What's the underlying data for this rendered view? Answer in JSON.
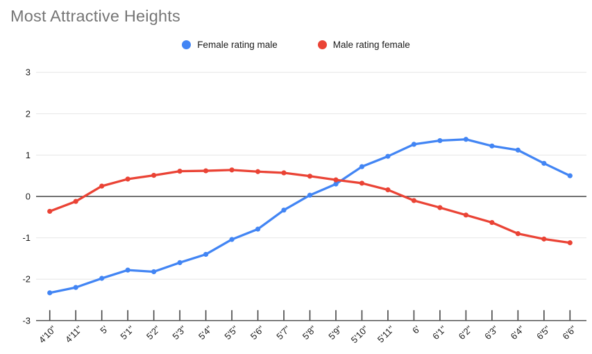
{
  "title": "Most Attractive Heights",
  "colors": {
    "title_text": "#757575",
    "series_blue": "#4285f4",
    "series_red": "#ea4335",
    "gridline": "#e6e6e6",
    "axis_line": "#424242",
    "axis_text": "#1a1a1a",
    "background": "#ffffff"
  },
  "legend": {
    "items": [
      {
        "label": "Female rating male",
        "color": "#4285f4"
      },
      {
        "label": "Male rating female",
        "color": "#ea4335"
      }
    ]
  },
  "chart_data": {
    "type": "line",
    "title": "Most Attractive Heights",
    "xlabel": "",
    "ylabel": "",
    "categories": [
      "4'10\"",
      "4'11\"",
      "5'",
      "5'1\"",
      "5'2\"",
      "5'3\"",
      "5'4\"",
      "5'5\"",
      "5'6\"",
      "5'7\"",
      "5'8\"",
      "5'9\"",
      "5'10\"",
      "5'11\"",
      "6'",
      "6'1\"",
      "6'2\"",
      "6'3\"",
      "6'4\"",
      "6'5\"",
      "6'6\""
    ],
    "series": [
      {
        "name": "Female rating male",
        "color": "#4285f4",
        "values": [
          -2.33,
          -2.2,
          -1.98,
          -1.78,
          -1.82,
          -1.6,
          -1.4,
          -1.04,
          -0.79,
          -0.33,
          0.03,
          0.3,
          0.72,
          0.97,
          1.26,
          1.35,
          1.38,
          1.22,
          1.12,
          0.8,
          0.5
        ]
      },
      {
        "name": "Male rating female",
        "color": "#ea4335",
        "values": [
          -0.36,
          -0.12,
          0.25,
          0.42,
          0.51,
          0.61,
          0.62,
          0.64,
          0.6,
          0.57,
          0.49,
          0.4,
          0.32,
          0.16,
          -0.1,
          -0.27,
          -0.45,
          -0.63,
          -0.9,
          -1.03,
          -1.12
        ]
      }
    ],
    "ylim": [
      -3,
      3
    ],
    "yticks": [
      3,
      2,
      1,
      0,
      -1,
      -2,
      -3
    ],
    "grid": true,
    "legend_position": "top",
    "x_tick_label_rotation_deg": -45
  }
}
